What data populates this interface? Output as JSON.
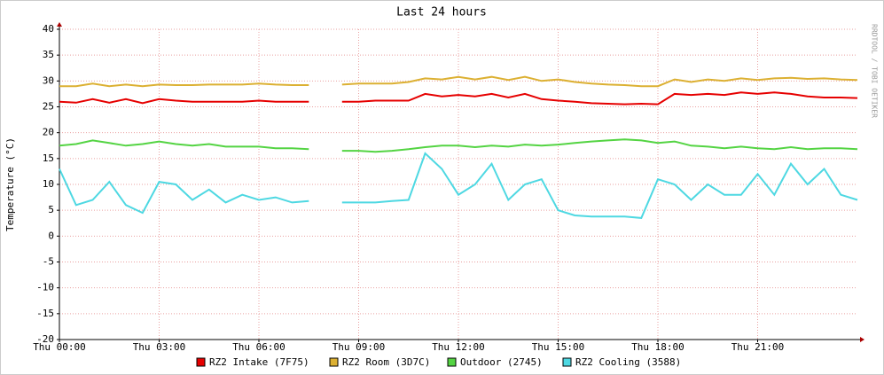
{
  "chart_data": {
    "type": "line",
    "title": "Last 24 hours",
    "y_label": "Temperature (°C)",
    "watermark": "RRDTOOL / TOBI OETIKER",
    "xlim": [
      0,
      24
    ],
    "ylim": [
      -20,
      40
    ],
    "yticks": [
      -20,
      -15,
      -10,
      -5,
      0,
      5,
      10,
      15,
      20,
      25,
      30,
      35,
      40
    ],
    "xticks": [
      {
        "value": 0,
        "label": "Thu 00:00"
      },
      {
        "value": 3,
        "label": "Thu 03:00"
      },
      {
        "value": 6,
        "label": "Thu 06:00"
      },
      {
        "value": 9,
        "label": "Thu 09:00"
      },
      {
        "value": 12,
        "label": "Thu 12:00"
      },
      {
        "value": 15,
        "label": "Thu 15:00"
      },
      {
        "value": 18,
        "label": "Thu 18:00"
      },
      {
        "value": 21,
        "label": "Thu 21:00"
      }
    ],
    "grid": true,
    "legend": "bottom",
    "x": [
      0,
      0.5,
      1,
      1.5,
      2,
      2.5,
      3,
      3.5,
      4,
      4.5,
      5,
      5.5,
      6,
      6.5,
      7,
      7.5,
      8,
      8.5,
      9,
      9.5,
      10,
      10.5,
      11,
      11.5,
      12,
      12.5,
      13,
      13.5,
      14,
      14.5,
      15,
      15.5,
      16,
      16.5,
      17,
      17.5,
      18,
      18.5,
      19,
      19.5,
      20,
      20.5,
      21,
      21.5,
      22,
      22.5,
      23,
      23.5,
      24
    ],
    "series": [
      {
        "name": "RZ2 Intake (7F75)",
        "color": "#e60000",
        "values": [
          26,
          25.8,
          26.5,
          25.8,
          26.5,
          25.7,
          26.5,
          26.2,
          26,
          26,
          26,
          26,
          26.2,
          26,
          26,
          26,
          null,
          26,
          26,
          26.2,
          26.2,
          26.2,
          27.5,
          27,
          27.3,
          27,
          27.5,
          26.8,
          27.5,
          26.5,
          26.2,
          26,
          25.7,
          25.6,
          25.5,
          25.6,
          25.5,
          27.5,
          27.3,
          27.5,
          27.3,
          27.8,
          27.5,
          27.8,
          27.5,
          27,
          26.8,
          26.8,
          26.7
        ]
      },
      {
        "name": "RZ2 Room (3D7C)",
        "color": "#dcb032",
        "values": [
          29,
          29,
          29.5,
          29,
          29.3,
          29,
          29.3,
          29.2,
          29.2,
          29.3,
          29.3,
          29.3,
          29.5,
          29.3,
          29.2,
          29.2,
          null,
          29.3,
          29.5,
          29.5,
          29.5,
          29.8,
          30.5,
          30.3,
          30.8,
          30.3,
          30.8,
          30.2,
          30.8,
          30,
          30.3,
          29.8,
          29.5,
          29.3,
          29.2,
          29,
          29,
          30.3,
          29.8,
          30.3,
          30,
          30.5,
          30.2,
          30.5,
          30.6,
          30.4,
          30.5,
          30.3,
          30.2
        ]
      },
      {
        "name": "Outdoor (2745)",
        "color": "#54d443",
        "values": [
          17.5,
          17.8,
          18.5,
          18,
          17.5,
          17.8,
          18.3,
          17.8,
          17.5,
          17.8,
          17.3,
          17.3,
          17.3,
          17,
          17,
          16.8,
          null,
          16.5,
          16.5,
          16.3,
          16.5,
          16.8,
          17.2,
          17.5,
          17.5,
          17.2,
          17.5,
          17.3,
          17.7,
          17.5,
          17.7,
          18,
          18.3,
          18.5,
          18.7,
          18.5,
          18,
          18.3,
          17.5,
          17.3,
          17,
          17.3,
          17,
          16.8,
          17.2,
          16.8,
          17,
          17,
          16.8
        ]
      },
      {
        "name": "RZ2 Cooling (3588)",
        "color": "#4ed8e2",
        "values": [
          13,
          6,
          7,
          10.5,
          6,
          4.5,
          10.5,
          10,
          7,
          9,
          6.5,
          8,
          7,
          7.5,
          6.5,
          6.8,
          null,
          6.5,
          6.5,
          6.5,
          6.8,
          7,
          16,
          13,
          8,
          10,
          14,
          7,
          10,
          11,
          5,
          4,
          3.8,
          3.8,
          3.8,
          3.5,
          11,
          10,
          7,
          10,
          8,
          8,
          12,
          8,
          14,
          10,
          13,
          8,
          7
        ]
      }
    ]
  }
}
